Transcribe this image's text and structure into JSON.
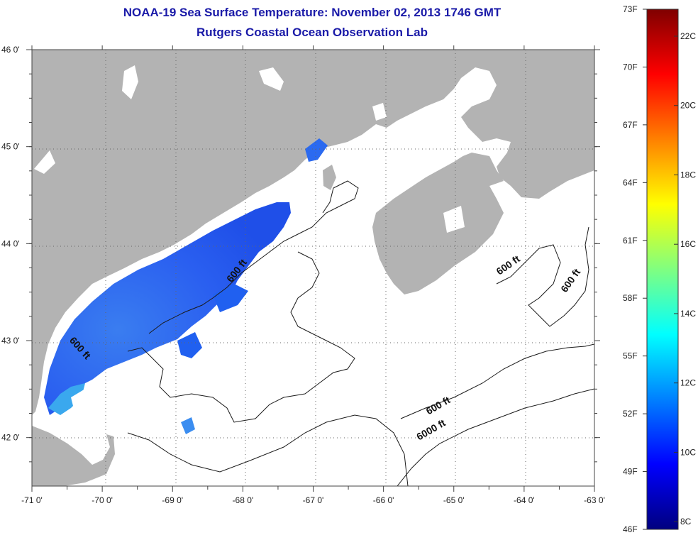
{
  "header": {
    "title": "NOAA-19 Sea Surface Temperature:  November 02, 2013 1746 GMT",
    "subtitle": "Rutgers Coastal Ocean Observation Lab"
  },
  "map": {
    "lon_range": [
      -71,
      -63
    ],
    "lat_range": [
      41.5,
      46
    ],
    "lon_ticks": [
      {
        "value": -71,
        "label": "-71 0'"
      },
      {
        "value": -70,
        "label": "-70 0'"
      },
      {
        "value": -69,
        "label": "-69 0'"
      },
      {
        "value": -68,
        "label": "-68 0'"
      },
      {
        "value": -67,
        "label": "-67 0'"
      },
      {
        "value": -66,
        "label": "-66 0'"
      },
      {
        "value": -65,
        "label": "-65 0'"
      },
      {
        "value": -64,
        "label": "-64 0'"
      },
      {
        "value": -63,
        "label": "-63 0'"
      }
    ],
    "lat_ticks": [
      {
        "value": 46,
        "label": "46 0'"
      },
      {
        "value": 45,
        "label": "45 0'"
      },
      {
        "value": 44,
        "label": "44 0'"
      },
      {
        "value": 43,
        "label": "43 0'"
      },
      {
        "value": 42,
        "label": "42 0'"
      }
    ],
    "grid": "dotted",
    "land_color": "#b3b3b3",
    "contour_labels": [
      {
        "text": "600 ft",
        "lon": -68.05,
        "lat": 43.7,
        "angle": -52
      },
      {
        "text": "600 ft",
        "lon": -70.35,
        "lat": 42.9,
        "angle": 48
      },
      {
        "text": "600 ft",
        "lon": -64.2,
        "lat": 43.75,
        "angle": -35
      },
      {
        "text": "600 ft",
        "lon": -63.3,
        "lat": 43.6,
        "angle": -55
      },
      {
        "text": "600 ft",
        "lon": -65.2,
        "lat": 42.3,
        "angle": -30
      },
      {
        "text": "6000 ft",
        "lon": -65.3,
        "lat": 42.05,
        "angle": -30
      }
    ]
  },
  "colorbar": {
    "f_labels": [
      {
        "label": "73F",
        "value": 73
      },
      {
        "label": "70F",
        "value": 70
      },
      {
        "label": "67F",
        "value": 67
      },
      {
        "label": "64F",
        "value": 64
      },
      {
        "label": "61F",
        "value": 61
      },
      {
        "label": "58F",
        "value": 58
      },
      {
        "label": "55F",
        "value": 55
      },
      {
        "label": "52F",
        "value": 52
      },
      {
        "label": "49F",
        "value": 49
      },
      {
        "label": "46F",
        "value": 46
      }
    ],
    "c_labels": [
      {
        "label": "22C",
        "value": 22
      },
      {
        "label": "20C",
        "value": 20
      },
      {
        "label": "18C",
        "value": 18
      },
      {
        "label": "16C",
        "value": 16
      },
      {
        "label": "14C",
        "value": 14
      },
      {
        "label": "12C",
        "value": 12
      },
      {
        "label": "10C",
        "value": 10
      },
      {
        "label": "8C",
        "value": 8
      }
    ],
    "range_f": [
      46,
      73
    ],
    "colors": [
      "#00007f",
      "#0000ff",
      "#0080ff",
      "#00ffff",
      "#80ff80",
      "#ffff00",
      "#ff8000",
      "#ff0000",
      "#7f0000"
    ]
  }
}
